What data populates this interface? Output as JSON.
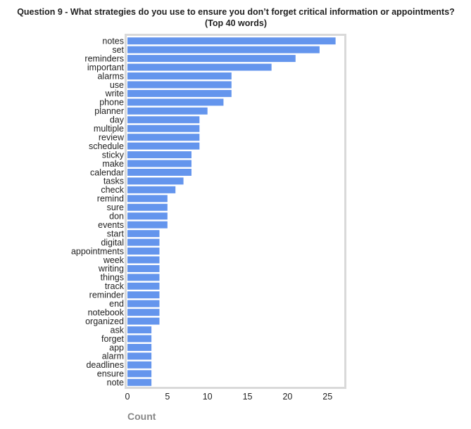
{
  "chart_data": {
    "type": "bar",
    "orientation": "horizontal",
    "title": "Question 9 - What strategies do you use to ensure you don’t forget critical information or appointments?",
    "subtitle": "(Top 40 words)",
    "xlabel": "Count",
    "ylabel": "",
    "xlim": [
      0,
      27
    ],
    "xticks": [
      "0",
      "5",
      "10",
      "15",
      "20",
      "25"
    ],
    "grid": false,
    "bar_color": "#6495ED",
    "frame_color": "#d9d9d9",
    "categories": [
      "notes",
      "set",
      "reminders",
      "important",
      "alarms",
      "use",
      "write",
      "phone",
      "planner",
      "day",
      "multiple",
      "review",
      "schedule",
      "sticky",
      "make",
      "calendar",
      "tasks",
      "check",
      "remind",
      "sure",
      "don",
      "events",
      "start",
      "digital",
      "appointments",
      "week",
      "writing",
      "things",
      "track",
      "reminder",
      "end",
      "notebook",
      "organized",
      "ask",
      "forget",
      "app",
      "alarm",
      "deadlines",
      "ensure",
      "note"
    ],
    "values": [
      26,
      24,
      21,
      18,
      13,
      13,
      13,
      12,
      10,
      9,
      9,
      9,
      9,
      8,
      8,
      8,
      7,
      6,
      5,
      5,
      5,
      5,
      4,
      4,
      4,
      4,
      4,
      4,
      4,
      4,
      4,
      4,
      4,
      3,
      3,
      3,
      3,
      3,
      3,
      3
    ]
  }
}
